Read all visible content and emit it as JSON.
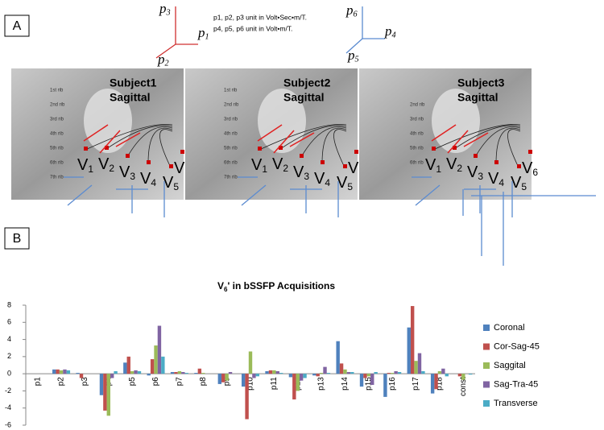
{
  "panel_a": {
    "label": "A",
    "axes": [
      {
        "main": "p",
        "sub": "3"
      },
      {
        "main": "p",
        "sub": "1"
      },
      {
        "main": "p",
        "sub": "2"
      },
      {
        "main": "p",
        "sub": "6"
      },
      {
        "main": "p",
        "sub": "4"
      },
      {
        "main": "p",
        "sub": "5"
      }
    ],
    "notes": [
      "p1, p2, p3 unit in Volt•Sec•m/T.",
      "p4, p5, p6 unit in Volt•m/T."
    ],
    "subjects": [
      {
        "name": "Subject1",
        "view": "Sagittal",
        "ribs": [
          "1st rib",
          "2nd rib",
          "3rd rib",
          "4th rib",
          "5th rib",
          "6th rib",
          "7th rib"
        ]
      },
      {
        "name": "Subject2",
        "view": "Sagittal",
        "ribs": [
          "1st rib",
          "2nd rib",
          "3rd rib",
          "4th rib",
          "5th rib",
          "6th rib",
          "7th rib"
        ]
      },
      {
        "name": "Subject3",
        "view": "Sagittal",
        "ribs": [
          "2nd rib",
          "3rd rib",
          "4th rib",
          "5th rib",
          "6th rib"
        ]
      }
    ],
    "leads": [
      {
        "main": "V",
        "sub": "1"
      },
      {
        "main": "V",
        "sub": "2"
      },
      {
        "main": "V",
        "sub": "3"
      },
      {
        "main": "V",
        "sub": "4"
      },
      {
        "main": "V",
        "sub": "5"
      },
      {
        "main": "V",
        "sub": "6"
      }
    ]
  },
  "panel_b": {
    "label": "B"
  },
  "chart_data": {
    "type": "bar",
    "title": {
      "main": "V",
      "sub": "6",
      "rest": "' in bSSFP Acquisitions"
    },
    "categories": [
      "p1",
      "p2",
      "p3",
      "p4",
      "p5",
      "p6",
      "p7",
      "p8",
      "p9",
      "p10",
      "p11",
      "p12",
      "p13",
      "p14",
      "p15",
      "p16",
      "p17",
      "p18",
      "const"
    ],
    "series": [
      {
        "name": "Coronal",
        "color": "#4f81bd",
        "values": [
          0,
          0.5,
          0.1,
          -2.5,
          1.3,
          -0.2,
          0.2,
          0.1,
          -1.2,
          -1.5,
          0.3,
          -0.4,
          -0.2,
          3.8,
          -1.5,
          -2.7,
          5.4,
          -2.3,
          0
        ]
      },
      {
        "name": "Cor-Sag-45",
        "color": "#c0504d",
        "values": [
          0,
          0.5,
          -0.5,
          -4.3,
          2.0,
          1.7,
          0.2,
          0.6,
          -1.0,
          -5.3,
          0.4,
          -3.0,
          -0.3,
          1.2,
          -0.5,
          0.1,
          7.9,
          -1.8,
          -0.3
        ]
      },
      {
        "name": "Saggital",
        "color": "#9bbb59",
        "values": [
          0,
          0.4,
          0,
          -4.9,
          0.3,
          3.3,
          0.3,
          0.1,
          -0.8,
          2.6,
          0.4,
          -2.0,
          0.1,
          0.5,
          -0.3,
          0.1,
          1.5,
          0.3,
          -0.7
        ]
      },
      {
        "name": "Sag-Tra-45",
        "color": "#8064a2",
        "values": [
          0,
          0.5,
          0,
          -0.5,
          0.4,
          5.6,
          0.2,
          0,
          0.2,
          -0.5,
          0.3,
          -0.8,
          0.8,
          0.2,
          -1.3,
          0.3,
          2.4,
          0.6,
          0
        ]
      },
      {
        "name": "Transverse",
        "color": "#4bacc6",
        "values": [
          0,
          0.4,
          0,
          0.3,
          0.3,
          2.0,
          0.1,
          0,
          0,
          -0.3,
          0.1,
          -0.5,
          0.1,
          0.2,
          0.2,
          0.2,
          0.3,
          -0.3,
          -0.1
        ]
      }
    ],
    "ylim": [
      -6,
      8
    ],
    "yticks": [
      -6,
      -4,
      -2,
      0,
      2,
      4,
      6,
      8
    ],
    "grid": false,
    "legend": "right"
  }
}
